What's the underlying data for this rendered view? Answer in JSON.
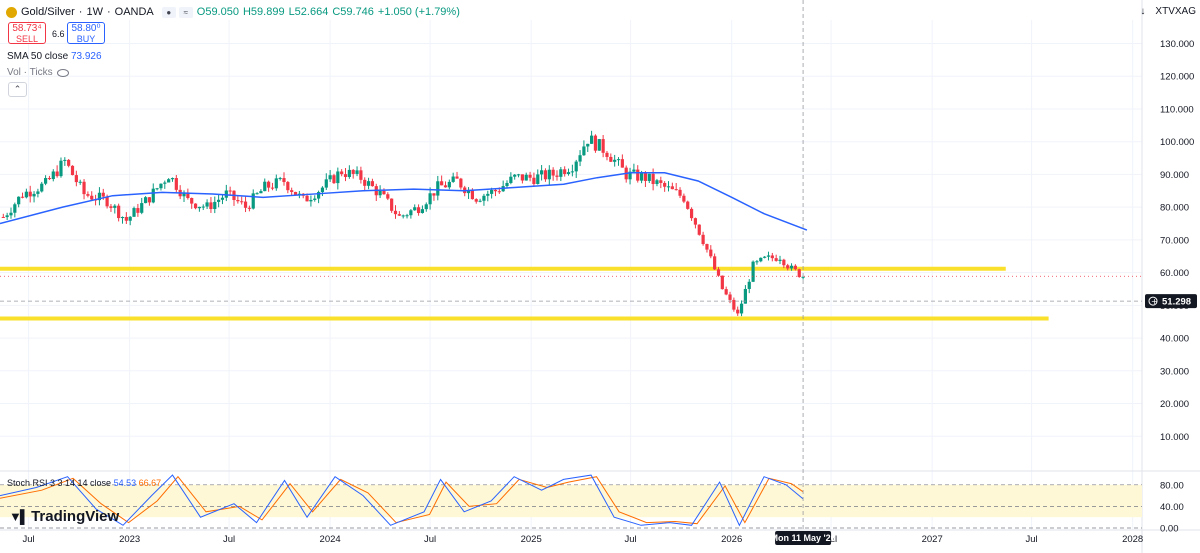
{
  "symbol": {
    "name": "Gold/Silver",
    "interval": "1W",
    "source": "OANDA",
    "open": "O59.050",
    "high": "H59.899",
    "low": "L52.664",
    "close": "C59.746",
    "change": "+1.050 (+1.79%)",
    "ticker": "XTVXAG"
  },
  "trade": {
    "sell_price": "58.73⁴",
    "sell_label": "SELL",
    "spread": "6.6",
    "buy_price": "58.80⁰",
    "buy_label": "BUY"
  },
  "indicators": {
    "sma_label": "SMA 50 close",
    "sma_value": "73.926",
    "vol_label": "Vol · Ticks",
    "rsi_label": "Stoch RSI 3 3 14 14 close",
    "rsi_k": "54.53",
    "rsi_d": "66.67"
  },
  "colors": {
    "up": "#089981",
    "down": "#f23645",
    "sma": "#2962ff",
    "hline": "#fae02a",
    "rsi_k": "#2962ff",
    "rsi_d": "#ff6d00"
  },
  "logo_text": "TradingView",
  "chart_data": {
    "type": "candlestick",
    "y_axis": {
      "range": [
        0,
        130
      ],
      "ticks": [
        {
          "v": 130,
          "t": "130.000"
        },
        {
          "v": 120,
          "t": "120.000"
        },
        {
          "v": 110,
          "t": "110.000"
        },
        {
          "v": 100,
          "t": "100.000"
        },
        {
          "v": 90,
          "t": "90.000"
        },
        {
          "v": 80,
          "t": "80.000"
        },
        {
          "v": 70,
          "t": "70.000"
        },
        {
          "v": 60,
          "t": "60.000"
        },
        {
          "v": 50,
          "t": "50.000"
        },
        {
          "v": 40,
          "t": "40.000"
        },
        {
          "v": 30,
          "t": "30.000"
        },
        {
          "v": 20,
          "t": "20.000"
        },
        {
          "v": 10,
          "t": "10.000"
        }
      ]
    },
    "x_axis": {
      "range": [
        "2022-05-10",
        "2028-01-18"
      ],
      "ticks": [
        {
          "d": "2022-07-01",
          "t": "Jul"
        },
        {
          "d": "2023-01-01",
          "t": "2023"
        },
        {
          "d": "2023-07-01",
          "t": "Jul"
        },
        {
          "d": "2024-01-01",
          "t": "2024"
        },
        {
          "d": "2024-07-01",
          "t": "Jul"
        },
        {
          "d": "2025-01-01",
          "t": "2025"
        },
        {
          "d": "2025-07-01",
          "t": "Jul"
        },
        {
          "d": "2026-01-01",
          "t": "2026"
        },
        {
          "d": "2026-07-01",
          "t": "Jul"
        },
        {
          "d": "2027-01-01",
          "t": "2027"
        },
        {
          "d": "2027-07-01",
          "t": "Jul"
        },
        {
          "d": "2028-01-01",
          "t": "2028"
        }
      ]
    },
    "crosshair": {
      "date": "2026-05-11",
      "label": "Mon 11 May '26",
      "price": 51.298,
      "price_label": "51.298"
    },
    "horizontal_lines": [
      {
        "price": 61.2,
        "end": "2027-05-15"
      },
      {
        "price": 46.0,
        "end": "2027-08-01"
      }
    ],
    "last_price": 58.9,
    "price_path": [
      {
        "d": "2022-05-16",
        "c": 77
      },
      {
        "d": "2022-06-20",
        "c": 84
      },
      {
        "d": "2022-08-01",
        "c": 87
      },
      {
        "d": "2022-09-05",
        "c": 94
      },
      {
        "d": "2022-10-10",
        "c": 84
      },
      {
        "d": "2022-11-21",
        "c": 82
      },
      {
        "d": "2022-12-26",
        "c": 76
      },
      {
        "d": "2023-02-06",
        "c": 83
      },
      {
        "d": "2023-03-13",
        "c": 90
      },
      {
        "d": "2023-04-17",
        "c": 82
      },
      {
        "d": "2023-05-22",
        "c": 80
      },
      {
        "d": "2023-06-26",
        "c": 84
      },
      {
        "d": "2023-07-31",
        "c": 80
      },
      {
        "d": "2023-09-04",
        "c": 86
      },
      {
        "d": "2023-10-09",
        "c": 88
      },
      {
        "d": "2023-11-13",
        "c": 82
      },
      {
        "d": "2023-12-18",
        "c": 86
      },
      {
        "d": "2024-01-22",
        "c": 91
      },
      {
        "d": "2024-02-26",
        "c": 89
      },
      {
        "d": "2024-04-01",
        "c": 84
      },
      {
        "d": "2024-05-06",
        "c": 77
      },
      {
        "d": "2024-06-10",
        "c": 80
      },
      {
        "d": "2024-07-15",
        "c": 86
      },
      {
        "d": "2024-08-19",
        "c": 88
      },
      {
        "d": "2024-09-23",
        "c": 83
      },
      {
        "d": "2024-10-28",
        "c": 85
      },
      {
        "d": "2024-12-02",
        "c": 89
      },
      {
        "d": "2025-01-06",
        "c": 89
      },
      {
        "d": "2025-02-10",
        "c": 90
      },
      {
        "d": "2025-03-17",
        "c": 93
      },
      {
        "d": "2025-04-14",
        "c": 101
      },
      {
        "d": "2025-05-19",
        "c": 97
      },
      {
        "d": "2025-06-23",
        "c": 90
      },
      {
        "d": "2025-07-28",
        "c": 89
      },
      {
        "d": "2025-09-01",
        "c": 86
      },
      {
        "d": "2025-10-06",
        "c": 83
      },
      {
        "d": "2025-11-10",
        "c": 70
      },
      {
        "d": "2025-12-15",
        "c": 55
      },
      {
        "d": "2026-01-12",
        "c": 47
      },
      {
        "d": "2026-02-09",
        "c": 62
      },
      {
        "d": "2026-03-02",
        "c": 64
      },
      {
        "d": "2026-03-30",
        "c": 65
      },
      {
        "d": "2026-04-20",
        "c": 61
      },
      {
        "d": "2026-05-11",
        "c": 59
      }
    ],
    "sma_path": [
      {
        "d": "2022-05-10",
        "v": 75
      },
      {
        "d": "2022-09-01",
        "v": 80
      },
      {
        "d": "2022-12-01",
        "v": 83.5
      },
      {
        "d": "2023-03-01",
        "v": 84.5
      },
      {
        "d": "2023-06-01",
        "v": 84
      },
      {
        "d": "2023-09-01",
        "v": 83
      },
      {
        "d": "2023-12-01",
        "v": 84
      },
      {
        "d": "2024-03-01",
        "v": 85
      },
      {
        "d": "2024-06-01",
        "v": 85.5
      },
      {
        "d": "2024-09-01",
        "v": 85
      },
      {
        "d": "2024-12-01",
        "v": 86
      },
      {
        "d": "2025-03-01",
        "v": 87
      },
      {
        "d": "2025-05-01",
        "v": 89
      },
      {
        "d": "2025-07-01",
        "v": 90.5
      },
      {
        "d": "2025-09-01",
        "v": 90.5
      },
      {
        "d": "2025-11-01",
        "v": 88
      },
      {
        "d": "2026-01-01",
        "v": 83
      },
      {
        "d": "2026-03-01",
        "v": 78
      },
      {
        "d": "2026-05-18",
        "v": 73
      }
    ],
    "rsi": {
      "ticks": [
        {
          "v": 80,
          "t": "80.00"
        },
        {
          "v": 40,
          "t": "40.00"
        },
        {
          "v": 0,
          "t": "0.00"
        }
      ],
      "band": [
        80,
        20
      ],
      "k": [
        {
          "d": "2022-05-10",
          "v": 60
        },
        {
          "d": "2022-07-15",
          "v": 75
        },
        {
          "d": "2022-09-10",
          "v": 95
        },
        {
          "d": "2022-11-01",
          "v": 35
        },
        {
          "d": "2022-12-20",
          "v": 5
        },
        {
          "d": "2023-02-10",
          "v": 60
        },
        {
          "d": "2023-03-20",
          "v": 98
        },
        {
          "d": "2023-05-10",
          "v": 20
        },
        {
          "d": "2023-07-10",
          "v": 45
        },
        {
          "d": "2023-08-20",
          "v": 10
        },
        {
          "d": "2023-10-10",
          "v": 88
        },
        {
          "d": "2023-11-20",
          "v": 20
        },
        {
          "d": "2024-01-10",
          "v": 95
        },
        {
          "d": "2024-03-01",
          "v": 60
        },
        {
          "d": "2024-04-20",
          "v": 5
        },
        {
          "d": "2024-06-20",
          "v": 30
        },
        {
          "d": "2024-07-20",
          "v": 90
        },
        {
          "d": "2024-09-01",
          "v": 30
        },
        {
          "d": "2024-10-20",
          "v": 50
        },
        {
          "d": "2024-12-01",
          "v": 95
        },
        {
          "d": "2025-01-20",
          "v": 70
        },
        {
          "d": "2025-03-01",
          "v": 90
        },
        {
          "d": "2025-04-20",
          "v": 98
        },
        {
          "d": "2025-06-01",
          "v": 20
        },
        {
          "d": "2025-07-20",
          "v": 5
        },
        {
          "d": "2025-09-10",
          "v": 10
        },
        {
          "d": "2025-10-20",
          "v": 5
        },
        {
          "d": "2025-12-10",
          "v": 85
        },
        {
          "d": "2026-01-15",
          "v": 5
        },
        {
          "d": "2026-03-01",
          "v": 95
        },
        {
          "d": "2026-04-10",
          "v": 80
        },
        {
          "d": "2026-05-11",
          "v": 54
        }
      ],
      "d": [
        {
          "d": "2022-05-10",
          "v": 55
        },
        {
          "d": "2022-07-25",
          "v": 70
        },
        {
          "d": "2022-09-20",
          "v": 92
        },
        {
          "d": "2022-11-10",
          "v": 45
        },
        {
          "d": "2022-12-30",
          "v": 10
        },
        {
          "d": "2023-02-20",
          "v": 50
        },
        {
          "d": "2023-03-30",
          "v": 95
        },
        {
          "d": "2023-05-20",
          "v": 30
        },
        {
          "d": "2023-07-20",
          "v": 40
        },
        {
          "d": "2023-08-30",
          "v": 15
        },
        {
          "d": "2023-10-20",
          "v": 82
        },
        {
          "d": "2023-11-30",
          "v": 30
        },
        {
          "d": "2024-01-20",
          "v": 90
        },
        {
          "d": "2024-03-10",
          "v": 65
        },
        {
          "d": "2024-04-30",
          "v": 10
        },
        {
          "d": "2024-06-30",
          "v": 25
        },
        {
          "d": "2024-07-30",
          "v": 85
        },
        {
          "d": "2024-09-10",
          "v": 40
        },
        {
          "d": "2024-10-30",
          "v": 45
        },
        {
          "d": "2024-12-10",
          "v": 90
        },
        {
          "d": "2025-01-30",
          "v": 75
        },
        {
          "d": "2025-03-10",
          "v": 85
        },
        {
          "d": "2025-04-30",
          "v": 95
        },
        {
          "d": "2025-06-10",
          "v": 30
        },
        {
          "d": "2025-07-30",
          "v": 10
        },
        {
          "d": "2025-09-20",
          "v": 12
        },
        {
          "d": "2025-10-30",
          "v": 8
        },
        {
          "d": "2025-12-20",
          "v": 78
        },
        {
          "d": "2026-01-25",
          "v": 10
        },
        {
          "d": "2026-03-10",
          "v": 92
        },
        {
          "d": "2026-04-20",
          "v": 82
        },
        {
          "d": "2026-05-11",
          "v": 67
        }
      ]
    }
  }
}
